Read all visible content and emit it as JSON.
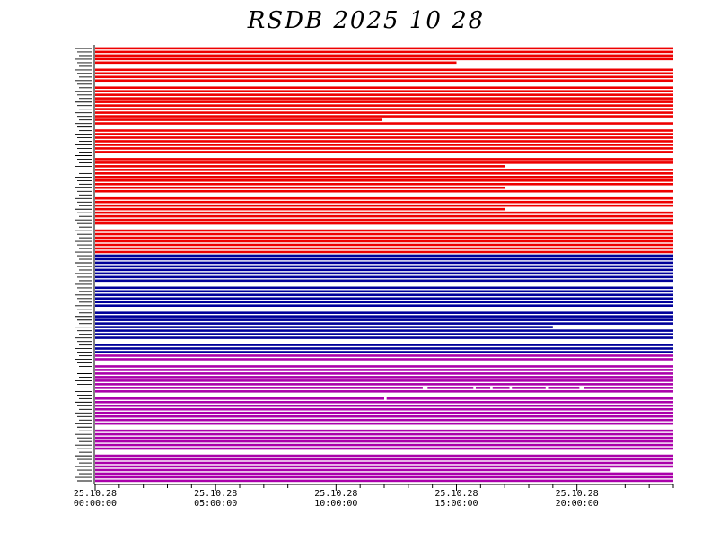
{
  "title": "RSDB 2025 10 28",
  "colors": {
    "group_a": "#ee0000",
    "group_b": "#000099",
    "group_c": "#aa00aa",
    "gap": "#ffffff",
    "axis": "#000000"
  },
  "chart_data": {
    "type": "timeline",
    "title": "RSDB 2025 10 28",
    "xlabel": "",
    "ylabel": "",
    "x_range": [
      "25.10.28 00:00:00",
      "25.10.29 00:00:00"
    ],
    "x_ticks": [
      {
        "date": "25.10.28",
        "time": "00:00:00"
      },
      {
        "date": "25.10.28",
        "time": "05:00:00"
      },
      {
        "date": "25.10.28",
        "time": "10:00:00"
      },
      {
        "date": "25.10.28",
        "time": "15:00:00"
      },
      {
        "date": "25.10.28",
        "time": "20:00:00"
      }
    ],
    "minor_tick_interval_hours": 1,
    "groups": [
      {
        "color": "group_a",
        "rows": 58
      },
      {
        "color": "group_b",
        "rows": 28
      },
      {
        "color": "group_c",
        "rows": 36
      }
    ],
    "missing_rows": [
      {
        "group": 0,
        "row": 5
      },
      {
        "group": 0,
        "row": 10
      },
      {
        "group": 0,
        "row": 22
      },
      {
        "group": 0,
        "row": 30
      },
      {
        "group": 0,
        "row": 41
      },
      {
        "group": 0,
        "row": 50
      },
      {
        "group": 1,
        "row": 8
      },
      {
        "group": 1,
        "row": 15
      },
      {
        "group": 1,
        "row": 24
      },
      {
        "group": 2,
        "row": 2
      },
      {
        "group": 2,
        "row": 11
      },
      {
        "group": 2,
        "row": 20
      },
      {
        "group": 2,
        "row": 27
      }
    ],
    "gaps_hours": [
      {
        "group": 0,
        "row": 4,
        "start": 15.0,
        "end": 24.0
      },
      {
        "group": 0,
        "row": 20,
        "start": 11.9,
        "end": 24.0
      },
      {
        "group": 0,
        "row": 33,
        "start": 17.0,
        "end": 24.0
      },
      {
        "group": 0,
        "row": 39,
        "start": 17.0,
        "end": 24.0
      },
      {
        "group": 0,
        "row": 45,
        "start": 17.0,
        "end": 24.0
      },
      {
        "group": 1,
        "row": 20,
        "start": 19.0,
        "end": 24.0
      },
      {
        "group": 2,
        "row": 9,
        "start": 13.6,
        "end": 13.8
      },
      {
        "group": 2,
        "row": 9,
        "start": 15.7,
        "end": 15.8
      },
      {
        "group": 2,
        "row": 9,
        "start": 16.4,
        "end": 16.5
      },
      {
        "group": 2,
        "row": 9,
        "start": 17.2,
        "end": 17.3
      },
      {
        "group": 2,
        "row": 9,
        "start": 18.7,
        "end": 18.8
      },
      {
        "group": 2,
        "row": 9,
        "start": 20.1,
        "end": 20.3
      },
      {
        "group": 2,
        "row": 12,
        "start": 12.0,
        "end": 12.1
      },
      {
        "group": 2,
        "row": 32,
        "start": 21.4,
        "end": 24.0
      }
    ],
    "grid": false,
    "legend": "none"
  }
}
